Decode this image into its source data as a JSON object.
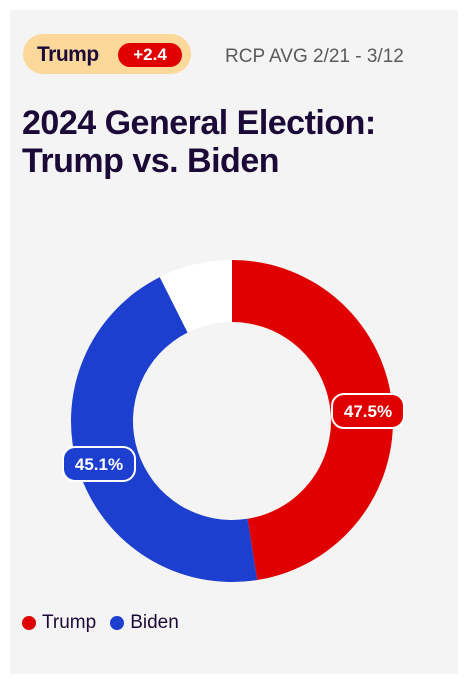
{
  "header": {
    "leader_name": "Trump",
    "leader_margin": "+2.4",
    "avg_label": "RCP AVG 2/21 - 3/12"
  },
  "title_line1": "2024 General Election:",
  "title_line2": "Trump vs. Biden",
  "colors": {
    "trump": "#e00000",
    "biden": "#1d3fcf",
    "other": "#ffffff",
    "pill": "#fcd99a",
    "text": "#1b0a38"
  },
  "chart_data": {
    "type": "pie",
    "title": "2024 General Election: Trump vs. Biden",
    "donut": true,
    "slices": [
      {
        "name": "Trump",
        "value": 47.5,
        "label": "47.5%",
        "color": "#e00000"
      },
      {
        "name": "Biden",
        "value": 45.1,
        "label": "45.1%",
        "color": "#1d3fcf"
      },
      {
        "name": "",
        "value": 7.4,
        "label": "",
        "color": "#ffffff"
      }
    ],
    "legend": [
      "Trump",
      "Biden"
    ],
    "legend_position": "bottom-left"
  }
}
